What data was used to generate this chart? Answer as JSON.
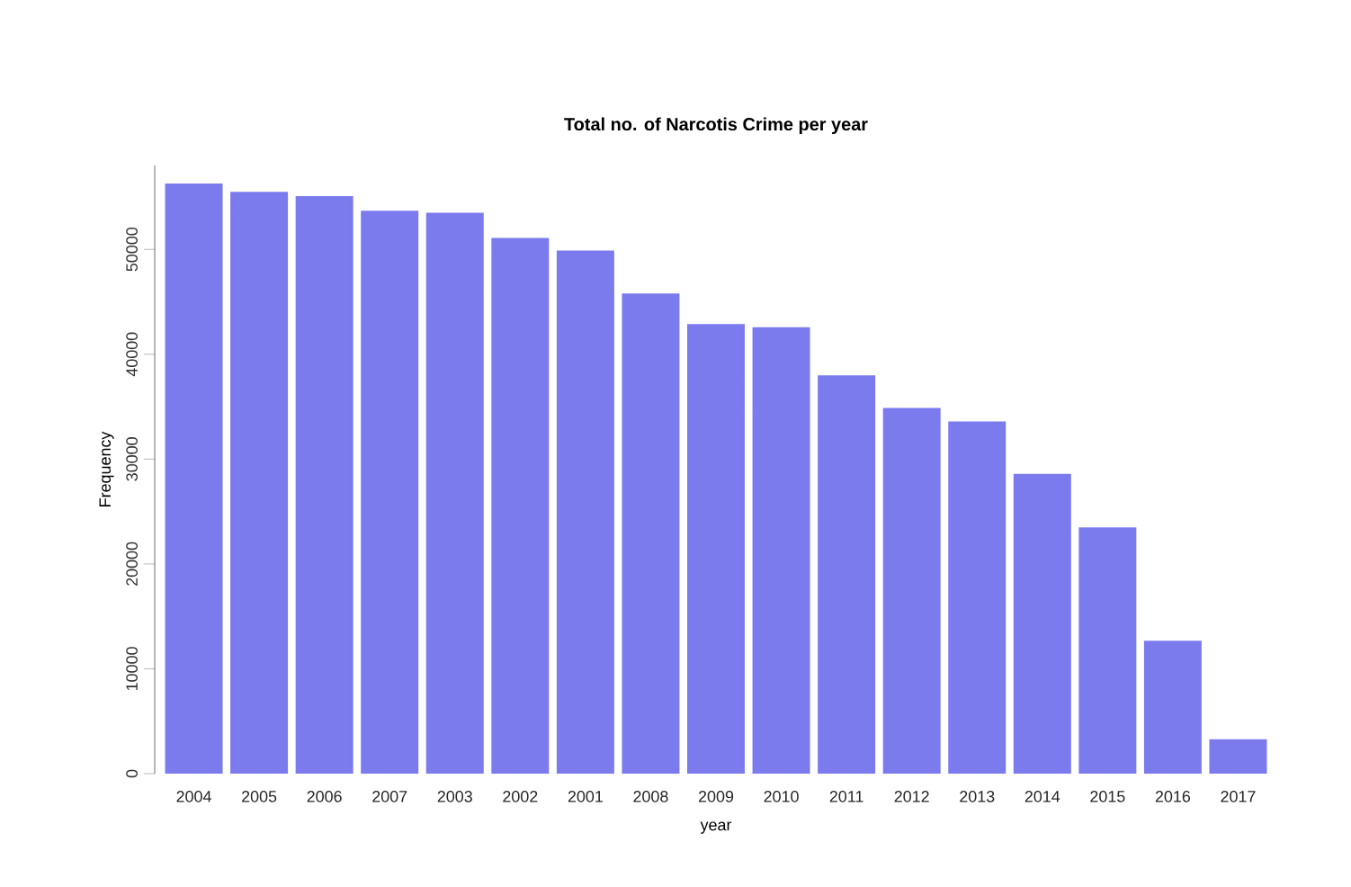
{
  "chart_data": {
    "type": "bar",
    "title": "Total no. of Narcotis Crime per year",
    "xlabel": "year",
    "ylabel": "Frequency",
    "categories": [
      "2004",
      "2005",
      "2006",
      "2007",
      "2003",
      "2002",
      "2001",
      "2008",
      "2009",
      "2010",
      "2011",
      "2012",
      "2013",
      "2014",
      "2015",
      "2016",
      "2017"
    ],
    "values": [
      56200,
      55400,
      55000,
      53600,
      53400,
      51000,
      49800,
      45700,
      42800,
      42500,
      37900,
      34800,
      33500,
      28500,
      23400,
      12600,
      3200
    ],
    "color": "#7b7bee",
    "ylim": [
      0,
      58000
    ],
    "yticks": [
      0,
      10000,
      20000,
      30000,
      40000,
      50000
    ],
    "grid": false
  }
}
